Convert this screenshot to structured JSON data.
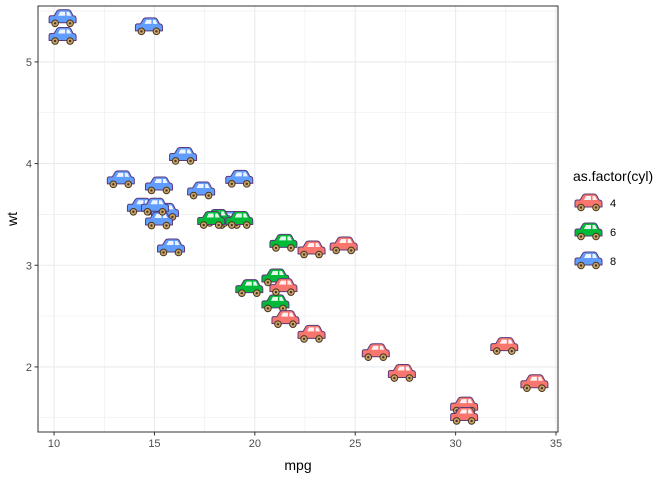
{
  "chart_data": {
    "type": "scatter",
    "title": "",
    "xlabel": "mpg",
    "ylabel": "wt",
    "xlim": [
      9.2,
      35.1
    ],
    "ylim": [
      1.36,
      5.55
    ],
    "x_ticks": [
      10,
      15,
      20,
      25,
      30,
      35
    ],
    "y_ticks": [
      2,
      3,
      4,
      5
    ],
    "grid": true,
    "marker": "car-icon",
    "legend": {
      "title": "as.factor(cyl)",
      "position": "right",
      "entries": [
        {
          "label": "4",
          "color": "#F8766D"
        },
        {
          "label": "6",
          "color": "#00BA38"
        },
        {
          "label": "8",
          "color": "#619CFF"
        }
      ]
    },
    "series": [
      {
        "name": "4",
        "color": "#F8766D",
        "points": [
          {
            "x": 22.8,
            "y": 2.32
          },
          {
            "x": 24.4,
            "y": 3.19
          },
          {
            "x": 22.8,
            "y": 3.15
          },
          {
            "x": 32.4,
            "y": 2.2
          },
          {
            "x": 30.4,
            "y": 1.615
          },
          {
            "x": 33.9,
            "y": 1.835
          },
          {
            "x": 21.5,
            "y": 2.465
          },
          {
            "x": 27.3,
            "y": 1.935
          },
          {
            "x": 26.0,
            "y": 2.14
          },
          {
            "x": 30.4,
            "y": 1.513
          },
          {
            "x": 21.4,
            "y": 2.78
          }
        ]
      },
      {
        "name": "6",
        "color": "#00BA38",
        "points": [
          {
            "x": 21.0,
            "y": 2.62
          },
          {
            "x": 21.0,
            "y": 2.875
          },
          {
            "x": 21.4,
            "y": 3.215
          },
          {
            "x": 18.1,
            "y": 3.46
          },
          {
            "x": 19.2,
            "y": 3.44
          },
          {
            "x": 17.8,
            "y": 3.44
          },
          {
            "x": 19.7,
            "y": 2.77
          }
        ]
      },
      {
        "name": "8",
        "color": "#619CFF",
        "points": [
          {
            "x": 18.7,
            "y": 3.44
          },
          {
            "x": 14.3,
            "y": 3.57
          },
          {
            "x": 16.4,
            "y": 4.07
          },
          {
            "x": 17.3,
            "y": 3.73
          },
          {
            "x": 15.2,
            "y": 3.78
          },
          {
            "x": 10.4,
            "y": 5.25
          },
          {
            "x": 10.4,
            "y": 5.424
          },
          {
            "x": 14.7,
            "y": 5.345
          },
          {
            "x": 15.5,
            "y": 3.52
          },
          {
            "x": 15.2,
            "y": 3.435
          },
          {
            "x": 13.3,
            "y": 3.84
          },
          {
            "x": 19.2,
            "y": 3.845
          },
          {
            "x": 15.8,
            "y": 3.17
          },
          {
            "x": 15.0,
            "y": 3.57
          }
        ]
      }
    ]
  }
}
